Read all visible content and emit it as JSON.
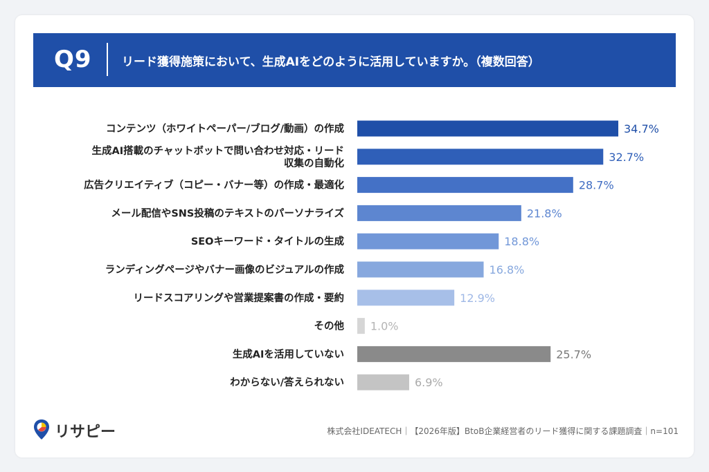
{
  "header": {
    "question_number": "Q9",
    "question_text": "リード獲得施策において、生成AIをどのように活用していますか。（複数回答）"
  },
  "chart_data": {
    "type": "bar",
    "orientation": "horizontal",
    "categories": [
      [
        "コンテンツ（ホワイトペーパー/ブログ/動画）の作成"
      ],
      [
        "生成AI搭載のチャットボットで問い合わせ対応・リード",
        "収集の自動化"
      ],
      [
        "広告クリエイティブ（コピー・バナー等）の作成・最適化"
      ],
      [
        "メール配信やSNS投稿のテキストのパーソナライズ"
      ],
      [
        "SEOキーワード・タイトルの生成"
      ],
      [
        "ランディングページやバナー画像のビジュアルの作成"
      ],
      [
        "リードスコアリングや営業提案書の作成・要約"
      ],
      [
        "その他"
      ],
      [
        "生成AIを活用していない"
      ],
      [
        "わからない/答えられない"
      ]
    ],
    "values": [
      34.7,
      32.7,
      28.7,
      21.8,
      18.8,
      16.8,
      12.9,
      1.0,
      25.7,
      6.9
    ],
    "value_labels": [
      "34.7%",
      "32.7%",
      "28.7%",
      "21.8%",
      "18.8%",
      "16.8%",
      "12.9%",
      "1.0%",
      "25.7%",
      "6.9%"
    ],
    "bar_colors": [
      "#1f4fa8",
      "#2f5fb8",
      "#4471c6",
      "#5d86d0",
      "#7197d8",
      "#87a8de",
      "#a7bfe8",
      "#d6d6d6",
      "#8a8a8a",
      "#c4c4c4"
    ],
    "label_colors": [
      "#1f4fa8",
      "#2f5fb8",
      "#3f6cc2",
      "#5d86d0",
      "#7197d8",
      "#87a8de",
      "#9fb8e6",
      "#b4b4b4",
      "#7a7a7a",
      "#aaaaaa"
    ],
    "xlim": [
      0,
      40
    ],
    "grid": false
  },
  "brand": {
    "name": "リサピー",
    "colors": [
      "#1f4fa8",
      "#f2c200",
      "#e84a3c"
    ]
  },
  "footer": {
    "text": "株式会社IDEATECH｜【2026年版】BtoB企業経営者のリード獲得に関する課題調査｜n=101"
  }
}
